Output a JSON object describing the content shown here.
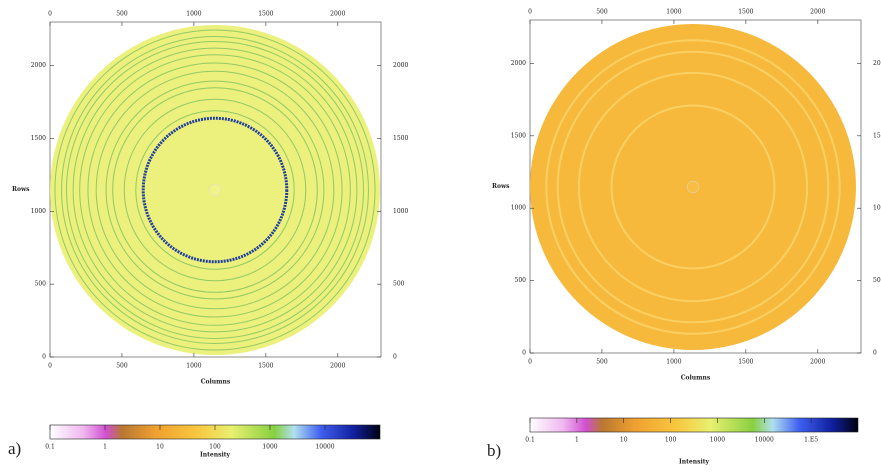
{
  "chart_data": [
    {
      "type": "heatmap",
      "panel_label": "a)",
      "xlabel": "Columns",
      "ylabel": "Rows",
      "xlim": [
        0,
        2300
      ],
      "ylim": [
        0,
        2300
      ],
      "xticks": [
        0,
        500,
        1000,
        1500,
        2000
      ],
      "yticks": [
        0,
        500,
        1000,
        1500,
        2000
      ],
      "colorbar": {
        "label": "Intensity",
        "log_scale": true,
        "clim": [
          0.1,
          100000
        ],
        "ticks": [
          0.1,
          1,
          10,
          100,
          1000,
          10000
        ]
      }
    },
    {
      "type": "heatmap",
      "panel_label": "b)",
      "xlabel": "Columns",
      "ylabel": "Rows",
      "xlim": [
        0,
        2300
      ],
      "ylim": [
        0,
        2300
      ],
      "xticks": [
        0,
        500,
        1000,
        1500,
        2000
      ],
      "yticks": [
        0,
        500,
        1000,
        1500,
        2000
      ],
      "colorbar": {
        "label": "Intensity",
        "log_scale": true,
        "clim": [
          0.1,
          1000000
        ],
        "ticks": [
          0.1,
          1,
          10,
          100,
          1000,
          10000,
          {
            "value": 100000,
            "label": "1.E5"
          }
        ]
      }
    }
  ]
}
